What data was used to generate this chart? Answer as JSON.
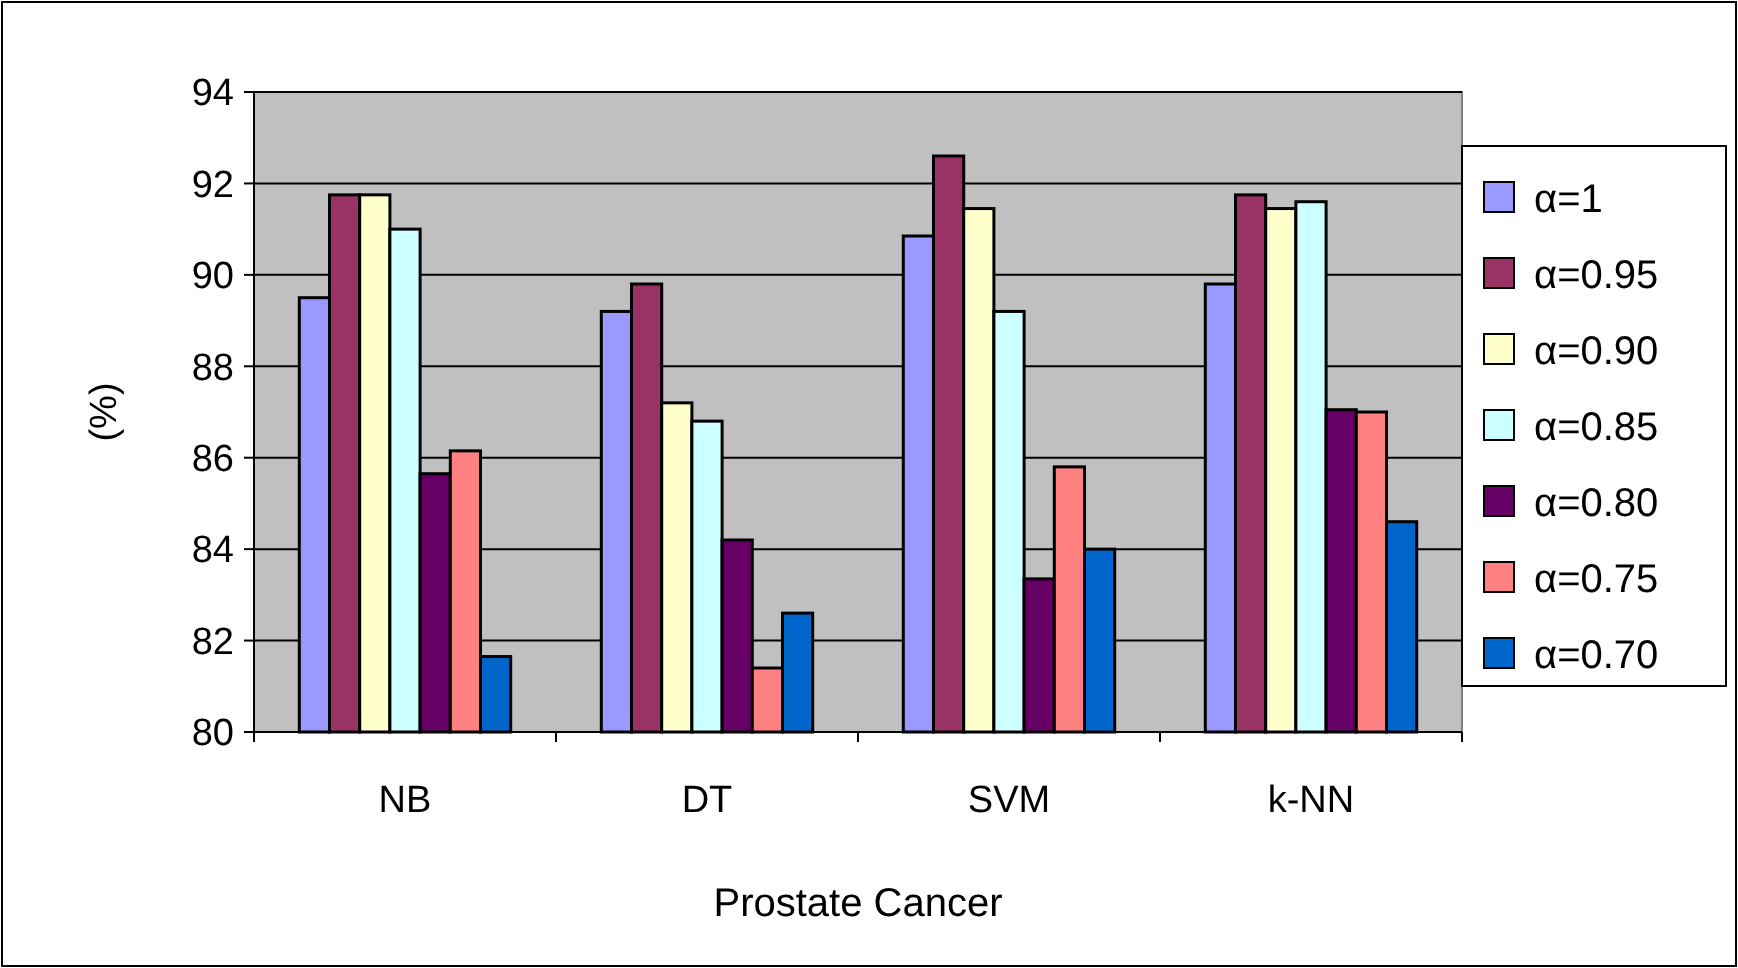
{
  "chart_data": {
    "type": "bar",
    "xlabel": "Prostate Cancer",
    "ylabel": "(%)",
    "categories": [
      "NB",
      "DT",
      "SVM",
      "k-NN"
    ],
    "series": [
      {
        "name": "α=1",
        "color": "#9999ff",
        "values": [
          89.5,
          89.2,
          90.85,
          89.8
        ]
      },
      {
        "name": "α=0.95",
        "color": "#993366",
        "values": [
          91.75,
          89.8,
          92.6,
          91.75
        ]
      },
      {
        "name": "α=0.90",
        "color": "#ffffcc",
        "values": [
          91.75,
          87.2,
          91.45,
          91.45
        ]
      },
      {
        "name": "α=0.85",
        "color": "#ccffff",
        "values": [
          91.0,
          86.8,
          89.2,
          91.6
        ]
      },
      {
        "name": "α=0.80",
        "color": "#660066",
        "values": [
          85.65,
          84.2,
          83.35,
          87.05
        ]
      },
      {
        "name": "α=0.75",
        "color": "#ff8080",
        "values": [
          86.15,
          81.4,
          85.8,
          87.0
        ]
      },
      {
        "name": "α=0.70",
        "color": "#0066cc",
        "values": [
          81.65,
          82.6,
          84.0,
          84.6
        ]
      }
    ],
    "ylim": [
      80,
      94
    ],
    "yticks": [
      80,
      82,
      84,
      86,
      88,
      90,
      92,
      94
    ],
    "grid": "y",
    "legend": "right"
  }
}
